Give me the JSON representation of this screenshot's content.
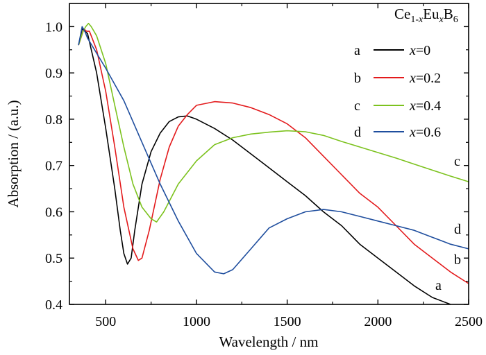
{
  "chart_data": {
    "type": "line",
    "title": "",
    "annotation": {
      "formula_parts": [
        "Ce",
        "1-",
        "x",
        "Eu",
        "x",
        "B",
        "6"
      ]
    },
    "xlabel": "Wavelength / nm",
    "ylabel": "Absorption / (a.u.)",
    "xlim": [
      300,
      2500
    ],
    "ylim": [
      0.4,
      1.05
    ],
    "x_ticks": [
      500,
      1000,
      1500,
      2000,
      2500
    ],
    "y_ticks": [
      0.4,
      0.5,
      0.6,
      0.7,
      0.8,
      0.9,
      1.0
    ],
    "x_tick_labels": [
      "500",
      "1000",
      "1500",
      "2000",
      "2500"
    ],
    "y_tick_labels": [
      "0.4",
      "0.5",
      "0.6",
      "0.7",
      "0.8",
      "0.9",
      "1.0"
    ],
    "grid": false,
    "legend_position": "top-right",
    "series": [
      {
        "id": "a",
        "letter": "a",
        "var": "x",
        "val": "=0",
        "color": "#000000",
        "end_label": "a",
        "points": [
          [
            350,
            0.96
          ],
          [
            370,
            0.995
          ],
          [
            385,
            0.99
          ],
          [
            400,
            0.985
          ],
          [
            450,
            0.9
          ],
          [
            500,
            0.78
          ],
          [
            550,
            0.65
          ],
          [
            580,
            0.56
          ],
          [
            600,
            0.51
          ],
          [
            620,
            0.487
          ],
          [
            640,
            0.5
          ],
          [
            660,
            0.56
          ],
          [
            700,
            0.66
          ],
          [
            750,
            0.73
          ],
          [
            800,
            0.77
          ],
          [
            850,
            0.795
          ],
          [
            900,
            0.805
          ],
          [
            950,
            0.807
          ],
          [
            1000,
            0.8
          ],
          [
            1100,
            0.78
          ],
          [
            1200,
            0.755
          ],
          [
            1300,
            0.725
          ],
          [
            1400,
            0.695
          ],
          [
            1500,
            0.665
          ],
          [
            1600,
            0.635
          ],
          [
            1700,
            0.6
          ],
          [
            1800,
            0.57
          ],
          [
            1900,
            0.53
          ],
          [
            2000,
            0.5
          ],
          [
            2100,
            0.47
          ],
          [
            2200,
            0.44
          ],
          [
            2300,
            0.415
          ],
          [
            2400,
            0.395
          ]
        ]
      },
      {
        "id": "b",
        "letter": "b",
        "var": "x",
        "val": "=0.2",
        "color": "#e31a1c",
        "end_label": "b",
        "points": [
          [
            350,
            0.96
          ],
          [
            380,
            0.995
          ],
          [
            395,
            0.99
          ],
          [
            410,
            0.99
          ],
          [
            450,
            0.95
          ],
          [
            500,
            0.86
          ],
          [
            550,
            0.74
          ],
          [
            600,
            0.61
          ],
          [
            650,
            0.52
          ],
          [
            680,
            0.495
          ],
          [
            700,
            0.5
          ],
          [
            740,
            0.56
          ],
          [
            800,
            0.67
          ],
          [
            850,
            0.74
          ],
          [
            900,
            0.785
          ],
          [
            950,
            0.81
          ],
          [
            1000,
            0.83
          ],
          [
            1100,
            0.838
          ],
          [
            1200,
            0.835
          ],
          [
            1300,
            0.825
          ],
          [
            1400,
            0.81
          ],
          [
            1500,
            0.79
          ],
          [
            1600,
            0.76
          ],
          [
            1700,
            0.72
          ],
          [
            1800,
            0.68
          ],
          [
            1900,
            0.64
          ],
          [
            2000,
            0.61
          ],
          [
            2100,
            0.57
          ],
          [
            2200,
            0.53
          ],
          [
            2300,
            0.5
          ],
          [
            2400,
            0.47
          ],
          [
            2500,
            0.445
          ]
        ]
      },
      {
        "id": "c",
        "letter": "c",
        "var": "x",
        "val": "=0.4",
        "color": "#7cc21e",
        "end_label": "c",
        "points": [
          [
            350,
            0.96
          ],
          [
            375,
            0.99
          ],
          [
            390,
            1.0
          ],
          [
            405,
            1.007
          ],
          [
            420,
            1.0
          ],
          [
            450,
            0.98
          ],
          [
            500,
            0.92
          ],
          [
            550,
            0.83
          ],
          [
            600,
            0.74
          ],
          [
            650,
            0.66
          ],
          [
            700,
            0.61
          ],
          [
            750,
            0.585
          ],
          [
            780,
            0.578
          ],
          [
            820,
            0.6
          ],
          [
            900,
            0.66
          ],
          [
            1000,
            0.71
          ],
          [
            1100,
            0.745
          ],
          [
            1200,
            0.76
          ],
          [
            1300,
            0.768
          ],
          [
            1400,
            0.772
          ],
          [
            1500,
            0.775
          ],
          [
            1600,
            0.773
          ],
          [
            1700,
            0.765
          ],
          [
            1800,
            0.752
          ],
          [
            1900,
            0.74
          ],
          [
            2000,
            0.728
          ],
          [
            2100,
            0.716
          ],
          [
            2200,
            0.703
          ],
          [
            2300,
            0.69
          ],
          [
            2400,
            0.677
          ],
          [
            2500,
            0.665
          ]
        ]
      },
      {
        "id": "d",
        "letter": "d",
        "var": "x",
        "val": "=0.6",
        "color": "#1f4e9e",
        "end_label": "d",
        "points": [
          [
            350,
            0.96
          ],
          [
            370,
            1.0
          ],
          [
            385,
            0.99
          ],
          [
            400,
            0.975
          ],
          [
            500,
            0.91
          ],
          [
            600,
            0.84
          ],
          [
            700,
            0.75
          ],
          [
            800,
            0.66
          ],
          [
            900,
            0.58
          ],
          [
            1000,
            0.51
          ],
          [
            1100,
            0.47
          ],
          [
            1150,
            0.466
          ],
          [
            1200,
            0.475
          ],
          [
            1300,
            0.52
          ],
          [
            1400,
            0.565
          ],
          [
            1500,
            0.585
          ],
          [
            1600,
            0.6
          ],
          [
            1700,
            0.605
          ],
          [
            1800,
            0.6
          ],
          [
            1900,
            0.59
          ],
          [
            2000,
            0.58
          ],
          [
            2100,
            0.57
          ],
          [
            2200,
            0.56
          ],
          [
            2300,
            0.545
          ],
          [
            2400,
            0.53
          ],
          [
            2500,
            0.52
          ]
        ]
      }
    ]
  }
}
